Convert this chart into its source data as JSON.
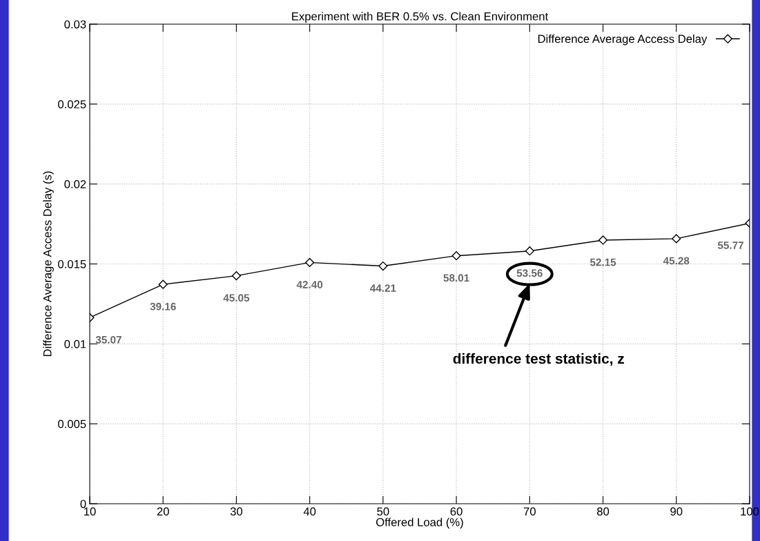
{
  "chart_data": {
    "type": "line",
    "title": "Experiment with BER 0.5% vs. Clean Environment",
    "xlabel": "Offered Load (%)",
    "ylabel": "Difference Average Access Delay (s)",
    "x": [
      10,
      20,
      30,
      40,
      50,
      60,
      70,
      80,
      90,
      100
    ],
    "series": [
      {
        "name": "Difference Average Access Delay",
        "color": "#000000",
        "values": [
          0.01164,
          0.01372,
          0.01426,
          0.01509,
          0.01487,
          0.01551,
          0.01581,
          0.01649,
          0.01658,
          0.01755
        ]
      }
    ],
    "xlim": [
      10,
      100
    ],
    "xticks": [
      10,
      20,
      30,
      40,
      50,
      60,
      70,
      80,
      90,
      100
    ],
    "ylim": [
      0,
      0.03
    ],
    "yticks": [
      0,
      0.005,
      0.01,
      0.015,
      0.02,
      0.025,
      0.03
    ],
    "grid": true,
    "legend": "top right",
    "marker": "diamond",
    "line_style": "solid",
    "annotations": [
      {
        "text": "35.07",
        "x": 10,
        "y": 0.01164
      },
      {
        "text": "39.16",
        "x": 20,
        "y": 0.01372
      },
      {
        "text": "45.05",
        "x": 30,
        "y": 0.01426
      },
      {
        "text": "42.40",
        "x": 40,
        "y": 0.01509
      },
      {
        "text": "44.21",
        "x": 50,
        "y": 0.01487
      },
      {
        "text": "58.01",
        "x": 60,
        "y": 0.01551
      },
      {
        "text": "53.56",
        "x": 70,
        "y": 0.01581
      },
      {
        "text": "52.15",
        "x": 80,
        "y": 0.01649
      },
      {
        "text": "45.28",
        "x": 90,
        "y": 0.01658
      },
      {
        "text": "55.77",
        "x": 100,
        "y": 0.01755
      },
      "difference test statistic, z"
    ]
  }
}
